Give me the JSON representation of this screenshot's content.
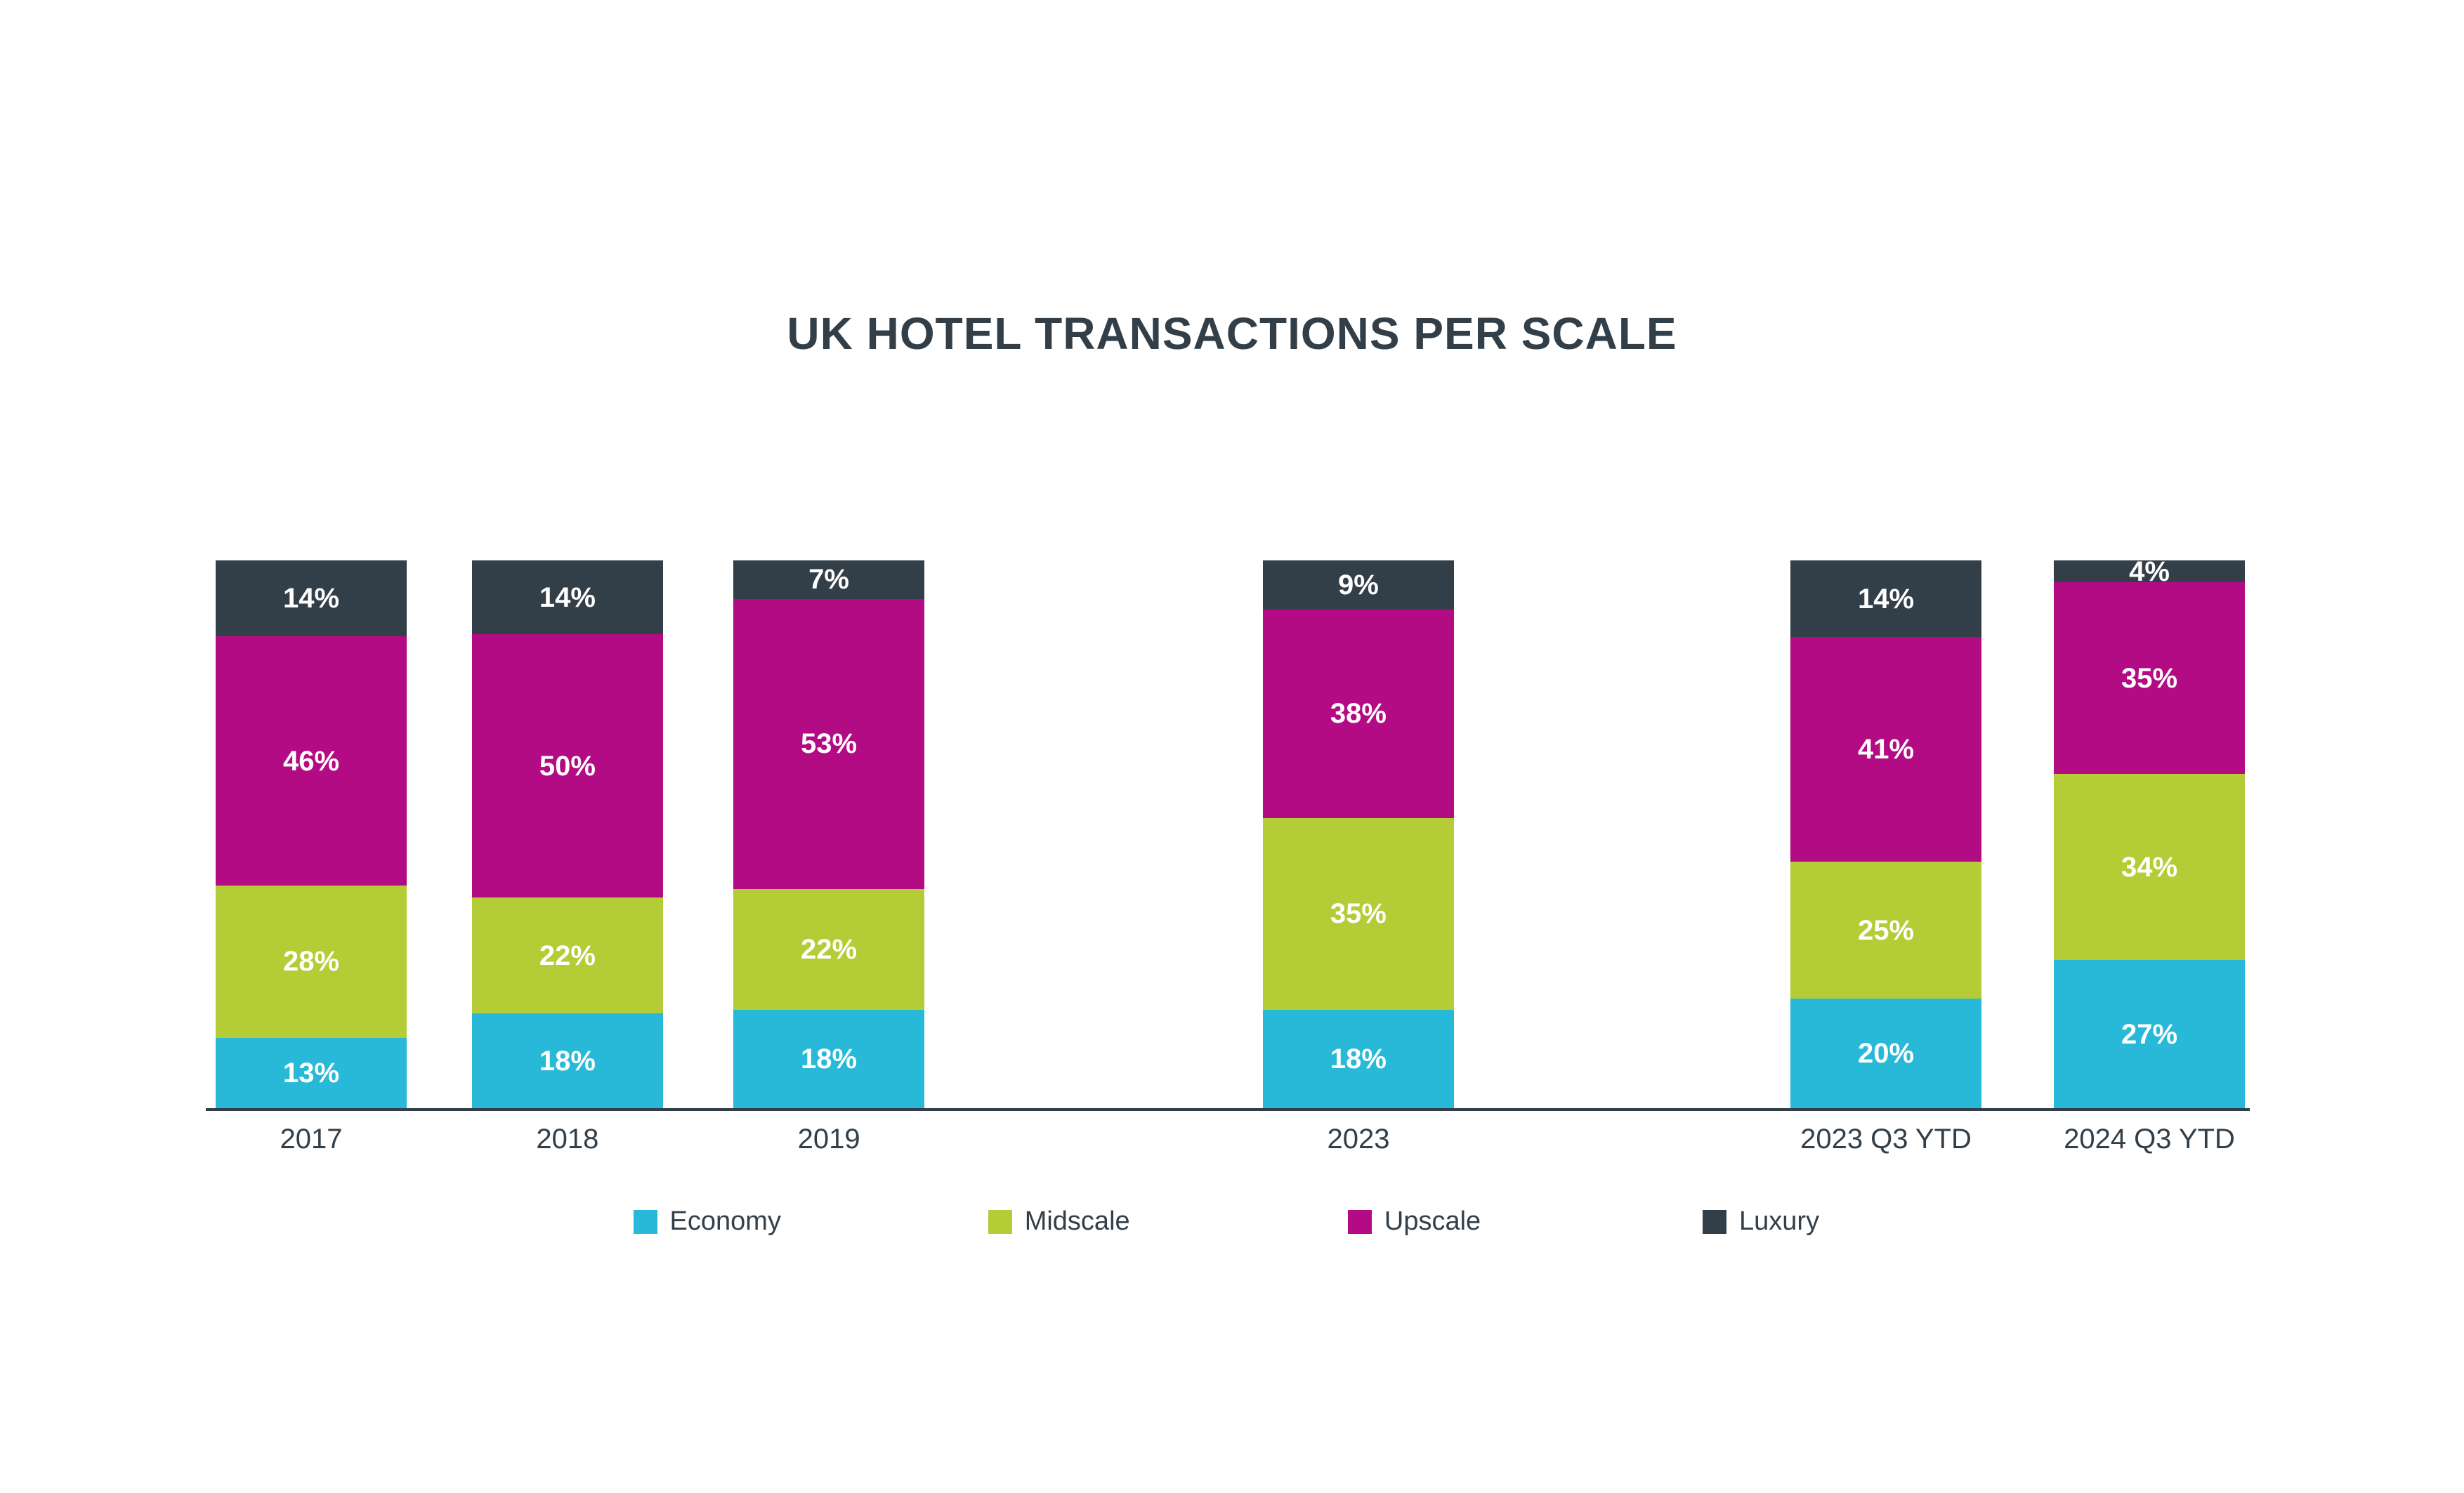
{
  "title": "UK HOTEL TRANSACTIONS PER SCALE",
  "chart_data": {
    "type": "bar",
    "stacked": true,
    "percent_stacked": true,
    "title": "UK HOTEL TRANSACTIONS PER SCALE",
    "xlabel": "",
    "ylabel": "",
    "grid": false,
    "legend_position": "bottom",
    "categories": [
      "2017",
      "2018",
      "2019",
      "2023",
      "2023 Q3 YTD",
      "2024 Q3 YTD"
    ],
    "series": [
      {
        "name": "Economy",
        "color": "#29B9D8",
        "values": [
          13,
          18,
          18,
          18,
          20,
          27
        ]
      },
      {
        "name": "Midscale",
        "color": "#B4CC35",
        "values": [
          28,
          22,
          22,
          35,
          25,
          34
        ]
      },
      {
        "name": "Upscale",
        "color": "#B20B83",
        "values": [
          46,
          50,
          53,
          38,
          41,
          35
        ]
      },
      {
        "name": "Luxury",
        "color": "#333F48",
        "values": [
          14,
          14,
          7,
          9,
          14,
          4
        ]
      }
    ],
    "value_label_suffix": "%",
    "layout": {
      "x_centers_pct": [
        12.63,
        23.03,
        33.64,
        55.13,
        76.54,
        87.23
      ],
      "bar_width_pct": 7.75,
      "legend_x_pct": [
        25.7,
        40.1,
        54.7,
        69.1
      ]
    }
  },
  "colors": {
    "text": "#333F48",
    "background": "#FFFFFF",
    "axis": "#333F48"
  }
}
